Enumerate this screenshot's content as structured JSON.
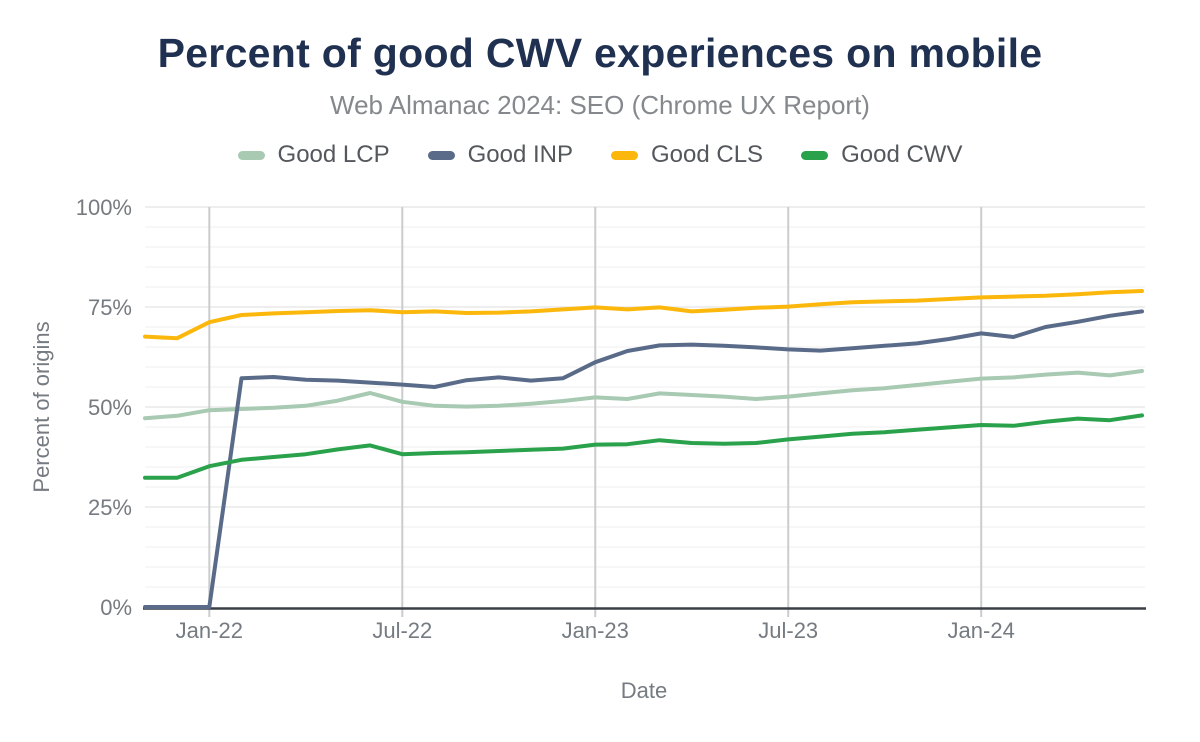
{
  "header": {
    "title": "Percent of good CWV experiences on mobile",
    "subtitle": "Web Almanac 2024: SEO (Chrome UX Report)"
  },
  "chart_data": {
    "type": "line",
    "title": "Percent of good CWV experiences on mobile",
    "subtitle": "Web Almanac 2024: SEO (Chrome UX Report)",
    "xlabel": "Date",
    "ylabel": "Percent of origins",
    "ylim": [
      0,
      100
    ],
    "grid": {
      "minor_color": "#F2F2F2",
      "major_color": "#E3E4E5",
      "vline_color": "#CACCCE",
      "axis_color": "#3A3F45"
    },
    "y_ticks": [
      {
        "value": 0,
        "label": "0%"
      },
      {
        "value": 25,
        "label": "25%"
      },
      {
        "value": 50,
        "label": "50%"
      },
      {
        "value": 75,
        "label": "75%"
      },
      {
        "value": 100,
        "label": "100%"
      }
    ],
    "x": [
      "Nov-21",
      "Dec-21",
      "Jan-22",
      "Feb-22",
      "Mar-22",
      "Apr-22",
      "May-22",
      "Jun-22",
      "Jul-22",
      "Aug-22",
      "Sep-22",
      "Oct-22",
      "Nov-22",
      "Dec-22",
      "Jan-23",
      "Feb-23",
      "Mar-23",
      "Apr-23",
      "May-23",
      "Jun-23",
      "Jul-23",
      "Aug-23",
      "Sep-23",
      "Oct-23",
      "Nov-23",
      "Dec-23",
      "Jan-24",
      "Feb-24",
      "Mar-24",
      "Apr-24",
      "May-24",
      "Jun-24"
    ],
    "x_ticks": [
      "Jan-22",
      "Jul-22",
      "Jan-23",
      "Jul-23",
      "Jan-24"
    ],
    "series": [
      {
        "name": "Good LCP",
        "color": "#A8C9B2",
        "values": [
          47.2,
          47.8,
          49.2,
          49.5,
          49.8,
          50.3,
          51.6,
          53.5,
          51.3,
          50.3,
          50.1,
          50.3,
          50.8,
          51.5,
          52.4,
          52.0,
          53.4,
          53.0,
          52.6,
          52.0,
          52.6,
          53.4,
          54.2,
          54.7,
          55.5,
          56.3,
          57.1,
          57.4,
          58.1,
          58.6,
          57.9,
          59.0
        ]
      },
      {
        "name": "Good INP",
        "color": "#5A6B89",
        "values": [
          0,
          0,
          0,
          57.2,
          57.5,
          56.8,
          56.6,
          56.1,
          55.6,
          55.0,
          56.7,
          57.4,
          56.6,
          57.2,
          61.2,
          64.0,
          65.4,
          65.6,
          65.3,
          64.9,
          64.4,
          64.1,
          64.7,
          65.3,
          65.9,
          67.0,
          68.4,
          67.5,
          70.0,
          71.3,
          72.8,
          73.9
        ]
      },
      {
        "name": "Good CLS",
        "color": "#FBB70B",
        "values": [
          67.6,
          67.2,
          71.2,
          73.0,
          73.4,
          73.7,
          74.0,
          74.2,
          73.7,
          73.9,
          73.5,
          73.6,
          73.9,
          74.4,
          74.9,
          74.4,
          74.9,
          73.9,
          74.3,
          74.8,
          75.1,
          75.7,
          76.2,
          76.4,
          76.6,
          77.0,
          77.4,
          77.6,
          77.8,
          78.2,
          78.7,
          79.0
        ]
      },
      {
        "name": "Good CWV",
        "color": "#2AA14B",
        "values": [
          32.3,
          32.3,
          35.2,
          36.8,
          37.5,
          38.2,
          39.4,
          40.4,
          38.2,
          38.5,
          38.7,
          39.0,
          39.3,
          39.6,
          40.6,
          40.7,
          41.7,
          41.0,
          40.8,
          41.0,
          41.9,
          42.6,
          43.3,
          43.7,
          44.3,
          44.9,
          45.5,
          45.3,
          46.3,
          47.1,
          46.7,
          47.9
        ]
      }
    ]
  }
}
